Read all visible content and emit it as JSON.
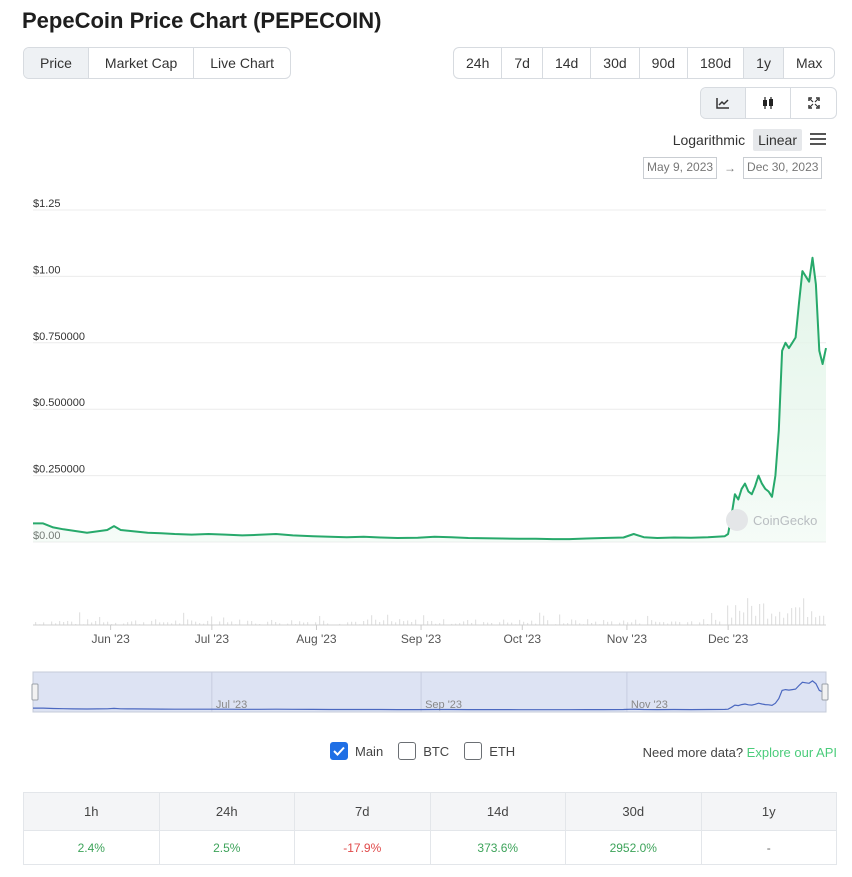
{
  "title": "PepeCoin Price Chart (PEPECOIN)",
  "tabs": [
    {
      "label": "Price",
      "active": true
    },
    {
      "label": "Market Cap",
      "active": false
    },
    {
      "label": "Live Chart",
      "active": false
    }
  ],
  "ranges": [
    {
      "label": "24h",
      "active": false
    },
    {
      "label": "7d",
      "active": false
    },
    {
      "label": "14d",
      "active": false
    },
    {
      "label": "30d",
      "active": false
    },
    {
      "label": "90d",
      "active": false
    },
    {
      "label": "180d",
      "active": false
    },
    {
      "label": "1y",
      "active": true
    },
    {
      "label": "Max",
      "active": false
    }
  ],
  "chart_types": [
    {
      "icon": "line-chart-icon",
      "active": true
    },
    {
      "icon": "candlestick-icon",
      "active": false
    },
    {
      "icon": "expand-icon",
      "active": false
    }
  ],
  "scale": {
    "logarithmic": "Logarithmic",
    "linear": "Linear",
    "active": "linear",
    "menu_icon": "hamburger-menu-icon"
  },
  "date_range": {
    "from": "May 9, 2023",
    "arrow": "→",
    "to": "Dec 30, 2023"
  },
  "watermark": "CoinGecko",
  "colors": {
    "line": "#27a96b",
    "fill": "#e3f5e9",
    "accent": "#1f6fe5",
    "link": "#4bcc7b",
    "navigator": "#dde3f3"
  },
  "chart_data": {
    "type": "area",
    "y_ticks": [
      "$0.00",
      "$0.250000",
      "$0.500000",
      "$0.750000",
      "$1.00",
      "$1.25"
    ],
    "y_tick_values": [
      0,
      0.25,
      0.5,
      0.75,
      1.0,
      1.25
    ],
    "ylim": [
      0,
      1.25
    ],
    "x_ticks": [
      "Jun '23",
      "Jul '23",
      "Aug '23",
      "Sep '23",
      "Oct '23",
      "Nov '23",
      "Dec '23"
    ],
    "x_tick_dates": [
      "2023-06-01",
      "2023-07-01",
      "2023-08-01",
      "2023-09-01",
      "2023-10-01",
      "2023-11-01",
      "2023-12-01"
    ],
    "navigator_ticks": [
      "Jul '23",
      "Sep '23",
      "Nov '23"
    ],
    "navigator_tick_dates": [
      "2023-07-01",
      "2023-09-01",
      "2023-11-01"
    ],
    "grid": true,
    "series": [
      {
        "points": [
          [
            "2023-05-09",
            0.07
          ],
          [
            "2023-05-12",
            0.07
          ],
          [
            "2023-05-15",
            0.055
          ],
          [
            "2023-05-18",
            0.048
          ],
          [
            "2023-05-21",
            0.042
          ],
          [
            "2023-05-25",
            0.035
          ],
          [
            "2023-05-28",
            0.04
          ],
          [
            "2023-05-31",
            0.045
          ],
          [
            "2023-06-02",
            0.06
          ],
          [
            "2023-06-04",
            0.045
          ],
          [
            "2023-06-08",
            0.04
          ],
          [
            "2023-06-12",
            0.035
          ],
          [
            "2023-06-16",
            0.033
          ],
          [
            "2023-06-20",
            0.03
          ],
          [
            "2023-06-25",
            0.028
          ],
          [
            "2023-06-30",
            0.03
          ],
          [
            "2023-07-05",
            0.028
          ],
          [
            "2023-07-10",
            0.025
          ],
          [
            "2023-07-15",
            0.027
          ],
          [
            "2023-07-20",
            0.03
          ],
          [
            "2023-07-25",
            0.025
          ],
          [
            "2023-07-31",
            0.022
          ],
          [
            "2023-08-05",
            0.02
          ],
          [
            "2023-08-10",
            0.018
          ],
          [
            "2023-08-15",
            0.02
          ],
          [
            "2023-08-20",
            0.017
          ],
          [
            "2023-08-25",
            0.015
          ],
          [
            "2023-08-31",
            0.016
          ],
          [
            "2023-09-05",
            0.02
          ],
          [
            "2023-09-10",
            0.018
          ],
          [
            "2023-09-15",
            0.015
          ],
          [
            "2023-09-20",
            0.014
          ],
          [
            "2023-09-25",
            0.013
          ],
          [
            "2023-09-30",
            0.012
          ],
          [
            "2023-10-05",
            0.012
          ],
          [
            "2023-10-10",
            0.011
          ],
          [
            "2023-10-15",
            0.011
          ],
          [
            "2023-10-20",
            0.013
          ],
          [
            "2023-10-25",
            0.015
          ],
          [
            "2023-10-31",
            0.017
          ],
          [
            "2023-11-03",
            0.03
          ],
          [
            "2023-11-06",
            0.018
          ],
          [
            "2023-11-10",
            0.015
          ],
          [
            "2023-11-15",
            0.017
          ],
          [
            "2023-11-20",
            0.016
          ],
          [
            "2023-11-25",
            0.018
          ],
          [
            "2023-11-30",
            0.022
          ],
          [
            "2023-12-01",
            0.03
          ],
          [
            "2023-12-02",
            0.1
          ],
          [
            "2023-12-03",
            0.18
          ],
          [
            "2023-12-04",
            0.16
          ],
          [
            "2023-12-05",
            0.2
          ],
          [
            "2023-12-06",
            0.22
          ],
          [
            "2023-12-07",
            0.19
          ],
          [
            "2023-12-08",
            0.18
          ],
          [
            "2023-12-09",
            0.21
          ],
          [
            "2023-12-10",
            0.25
          ],
          [
            "2023-12-11",
            0.22
          ],
          [
            "2023-12-12",
            0.2
          ],
          [
            "2023-12-13",
            0.19
          ],
          [
            "2023-12-14",
            0.17
          ],
          [
            "2023-12-15",
            0.25
          ],
          [
            "2023-12-16",
            0.42
          ],
          [
            "2023-12-17",
            0.72
          ],
          [
            "2023-12-18",
            0.75
          ],
          [
            "2023-12-19",
            0.73
          ],
          [
            "2023-12-20",
            0.75
          ],
          [
            "2023-12-21",
            0.77
          ],
          [
            "2023-12-22",
            0.9
          ],
          [
            "2023-12-23",
            1.02
          ],
          [
            "2023-12-24",
            1.0
          ],
          [
            "2023-12-25",
            0.98
          ],
          [
            "2023-12-26",
            1.07
          ],
          [
            "2023-12-27",
            0.97
          ],
          [
            "2023-12-28",
            0.72
          ],
          [
            "2023-12-29",
            0.67
          ],
          [
            "2023-12-30",
            0.73
          ]
        ]
      }
    ]
  },
  "series_toggles": [
    {
      "label": "Main",
      "checked": true
    },
    {
      "label": "BTC",
      "checked": false
    },
    {
      "label": "ETH",
      "checked": false
    }
  ],
  "more_data": {
    "text": "Need more data?",
    "link": "Explore our API"
  },
  "performance": {
    "headers": [
      "1h",
      "24h",
      "7d",
      "14d",
      "30d",
      "1y"
    ],
    "values": [
      "2.4%",
      "2.5%",
      "-17.9%",
      "373.6%",
      "2952.0%",
      "-"
    ],
    "trend": [
      "pos",
      "pos",
      "neg",
      "pos",
      "pos",
      "neutral"
    ]
  }
}
